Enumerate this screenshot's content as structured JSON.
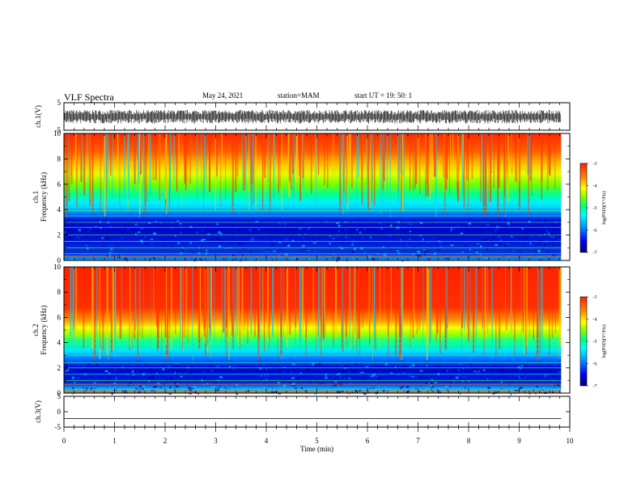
{
  "header": {
    "title": "VLF Spectra",
    "date": "May 24, 2021",
    "station": "station=MAM",
    "start": "start UT = 19: 50: 1"
  },
  "colors": {
    "spectrogram_scale": [
      "#000070",
      "#0000ff",
      "#00a0ff",
      "#00ffff",
      "#00ff80",
      "#80ff00",
      "#ffff00",
      "#ff8000",
      "#ff2000"
    ]
  },
  "chart_data": [
    {
      "type": "line",
      "panel": "ch1-waveform",
      "ylabel": "ch.1(V)",
      "ylim": [
        -5,
        5
      ],
      "yticks": [
        "5",
        "-5"
      ],
      "x_range_min": [
        0,
        9.83
      ],
      "y_range_v": [
        -2.6,
        2.4
      ]
    },
    {
      "type": "heatmap",
      "panel": "ch1-spectrogram",
      "ylabel_line1": "ch.1",
      "ylabel_line2": "Frequency (kHz)",
      "ylim": [
        0,
        10
      ],
      "yticks": [
        "0",
        "2",
        "4",
        "6",
        "8",
        "10"
      ],
      "x_range_min": [
        0,
        9.83
      ],
      "colorbar": {
        "label": "log(PSD)(V²/Hz)",
        "range": [
          -7,
          -3
        ],
        "ticks": [
          "-3",
          "-4",
          "-5",
          "-6",
          "-7"
        ]
      },
      "band_boundaries_khz": {
        "dark_blue_top": 3.2,
        "cyan_top": 4.5,
        "green_top": 6.0,
        "yellow_top": 7.5
      },
      "interference_lines_khz": [
        0.3,
        0.55,
        1.0,
        1.5,
        2.0,
        2.6,
        3.0,
        3.5,
        3.9,
        4.2
      ]
    },
    {
      "type": "heatmap",
      "panel": "ch2-spectrogram",
      "ylabel_line1": "ch.2",
      "ylabel_line2": "Frequency (kHz)",
      "ylim": [
        0,
        10
      ],
      "yticks": [
        "0",
        "2",
        "4",
        "6",
        "8",
        "10"
      ],
      "x_range_min": [
        0,
        9.83
      ],
      "colorbar": {
        "label": "log(PSD)(V²/Hz)",
        "range": [
          -7,
          -3
        ],
        "ticks": [
          "-3",
          "-4",
          "-5",
          "-6",
          "-7"
        ]
      },
      "band_boundaries_khz": {
        "dark_blue_top": 2.4,
        "cyan_top": 3.6,
        "green_top": 4.6,
        "yellow_top": 5.4
      },
      "interference_lines_khz": [
        0.3,
        0.7,
        1.0,
        1.5,
        2.0,
        2.4,
        3.0,
        3.5,
        3.9,
        4.3
      ]
    },
    {
      "type": "line",
      "panel": "ch3-waveform",
      "ylabel": "ch.3(V)",
      "ylim": [
        -5,
        5
      ],
      "yticks": [
        "5",
        "0",
        "-5"
      ],
      "x_range_min": [
        0,
        9.83
      ],
      "y_value_v": -2.2,
      "xlabel": "Time (min)",
      "xlim": [
        0,
        10
      ],
      "xticks": [
        "0",
        "1",
        "2",
        "3",
        "4",
        "5",
        "6",
        "7",
        "8",
        "9",
        "10"
      ]
    }
  ]
}
